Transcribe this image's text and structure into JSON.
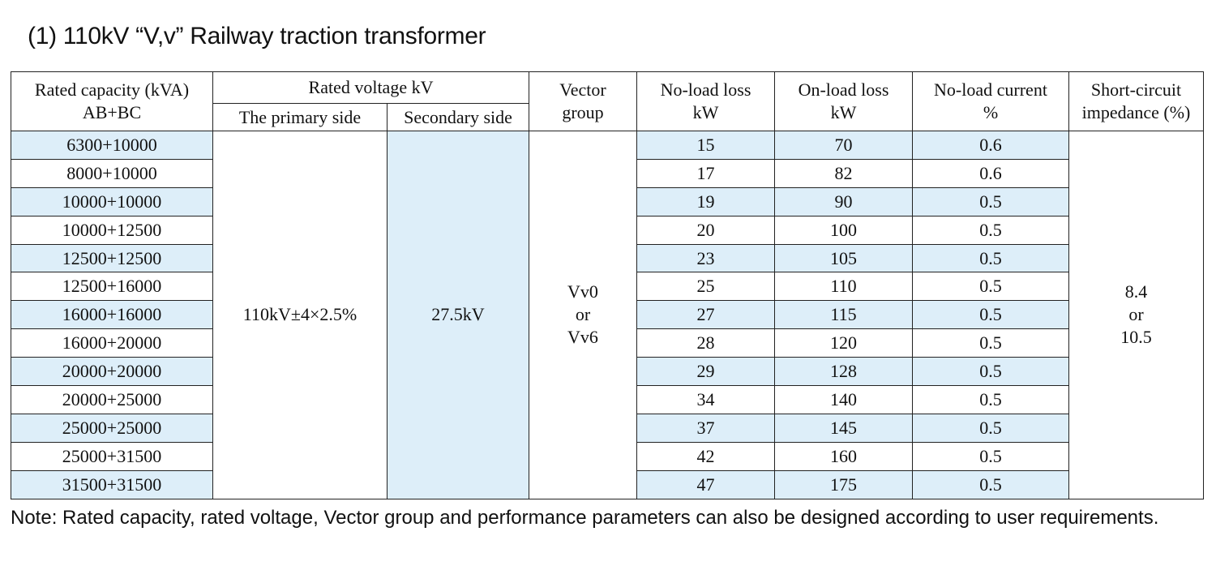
{
  "title": "(1) 110kV “V,v” Railway traction transformer",
  "headers": {
    "rated_capacity": [
      "Rated capacity (kVA)",
      "AB+BC"
    ],
    "rated_voltage": "Rated voltage kV",
    "primary_side": "The primary side",
    "secondary_side": "Secondary side",
    "vector_group": [
      "Vector",
      "group"
    ],
    "no_load_loss": [
      "No-load loss",
      "kW"
    ],
    "on_load_loss": [
      "On-load loss",
      "kW"
    ],
    "no_load_current": [
      "No-load current",
      "%"
    ],
    "short_circuit": [
      "Short-circuit",
      "impedance (%)"
    ]
  },
  "merged": {
    "primary_voltage": "110kV±4×2.5%",
    "secondary_voltage": "27.5kV",
    "vector_group": [
      "Vv0",
      "or",
      "Vv6"
    ],
    "impedance": [
      "8.4",
      "or",
      "10.5"
    ]
  },
  "rows": [
    {
      "capacity": "6300+10000",
      "no_load_loss": "15",
      "on_load_loss": "70",
      "no_load_current": "0.6"
    },
    {
      "capacity": "8000+10000",
      "no_load_loss": "17",
      "on_load_loss": "82",
      "no_load_current": "0.6"
    },
    {
      "capacity": "10000+10000",
      "no_load_loss": "19",
      "on_load_loss": "90",
      "no_load_current": "0.5"
    },
    {
      "capacity": "10000+12500",
      "no_load_loss": "20",
      "on_load_loss": "100",
      "no_load_current": "0.5"
    },
    {
      "capacity": "12500+12500",
      "no_load_loss": "23",
      "on_load_loss": "105",
      "no_load_current": "0.5"
    },
    {
      "capacity": "12500+16000",
      "no_load_loss": "25",
      "on_load_loss": "110",
      "no_load_current": "0.5"
    },
    {
      "capacity": "16000+16000",
      "no_load_loss": "27",
      "on_load_loss": "115",
      "no_load_current": "0.5"
    },
    {
      "capacity": "16000+20000",
      "no_load_loss": "28",
      "on_load_loss": "120",
      "no_load_current": "0.5"
    },
    {
      "capacity": "20000+20000",
      "no_load_loss": "29",
      "on_load_loss": "128",
      "no_load_current": "0.5"
    },
    {
      "capacity": "20000+25000",
      "no_load_loss": "34",
      "on_load_loss": "140",
      "no_load_current": "0.5"
    },
    {
      "capacity": "25000+25000",
      "no_load_loss": "37",
      "on_load_loss": "145",
      "no_load_current": "0.5"
    },
    {
      "capacity": "25000+31500",
      "no_load_loss": "42",
      "on_load_loss": "160",
      "no_load_current": "0.5"
    },
    {
      "capacity": "31500+31500",
      "no_load_loss": "47",
      "on_load_loss": "175",
      "no_load_current": "0.5"
    }
  ],
  "note": "Note: Rated capacity, rated voltage, Vector group and performance parameters can also be designed according to user requirements.",
  "colors": {
    "stripe": "#ddeef9",
    "border": "#222222"
  }
}
